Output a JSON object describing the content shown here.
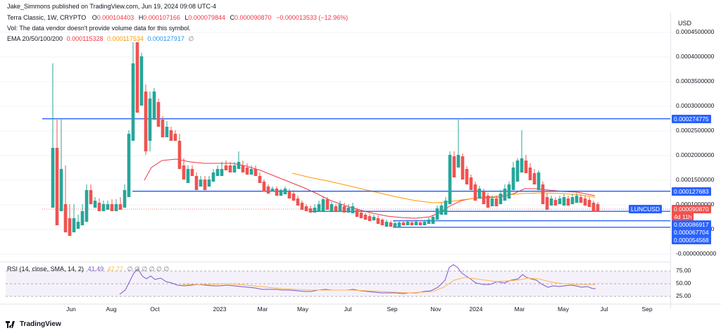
{
  "header": {
    "author": "Jake_Simmons published on TradingView.com, Jun 19, 2024 09:08 UTC-4",
    "symbol": "Terra Classic, 1W, CRYPTO",
    "ohlc": {
      "o_label": "O",
      "o": "0.000104403",
      "h_label": "H",
      "h": "0.000107166",
      "l_label": "L",
      "l": "0.000079844",
      "c_label": "C",
      "c": "0.000090870",
      "change": "−0.000013533 (−12.96%)"
    },
    "volume_note": "Vol: The data vendor doesn't provide volume data for this symbol.",
    "ema": {
      "label": "EMA 20/50/100/200",
      "v1": "0.000115328",
      "v2": "0.000117534",
      "v3": "0.000127917",
      "v4": "∅"
    }
  },
  "price_axis": {
    "currency": "USD",
    "ticks": [
      "0.0004500000",
      "0.0004000000",
      "0.0003500000",
      "0.0003000000",
      "0.0002500000",
      "0.0002000000",
      "0.0001500000",
      "0.0001000000",
      "0.0000500000",
      "-0.0000000000"
    ]
  },
  "badges": {
    "level1": "0.000274775",
    "level2": "0.000127683",
    "symbol": "LUNCUSD",
    "last_price": "0.000090870",
    "countdown": "4d 11h",
    "level3": "0.000086917",
    "level4": "0.000067704",
    "level5": "0.000054568"
  },
  "rsi": {
    "label": "RSI (14, close, SMA, 14, 2)",
    "value": "41.49",
    "sma_value": "47.77",
    "extra": "∅ ∅ ∅ ∅ ∅ ∅",
    "ticks": [
      "75.00",
      "50.00",
      "25.00"
    ]
  },
  "time_axis": {
    "labels": [
      "Jun",
      "Aug",
      "Oct",
      "2023",
      "Mar",
      "May",
      "Jul",
      "Sep",
      "Nov",
      "2024",
      "Mar",
      "May",
      "Jul",
      "Sep"
    ]
  },
  "branding": {
    "logo_text": "TradingView"
  },
  "colors": {
    "up": "#26a69a",
    "down": "#ef5350",
    "hline": "#2962ff",
    "ema_fast": "#f23645",
    "ema_slow": "#ff9800",
    "rsi": "#7e57c2",
    "rsi_band": "#ede7f6"
  },
  "chart_data": {
    "type": "candlestick",
    "series_unit": "USD",
    "x_range": [
      "2022-05",
      "2024-09"
    ],
    "ylim": [
      0,
      0.00046
    ],
    "horizontal_levels": [
      0.000274775,
      0.000127683,
      8.6917e-05,
      6.7704e-05,
      5.4568e-05
    ],
    "last_close": 9.087e-05,
    "rsi": {
      "last": 41.49,
      "sma": 47.77,
      "bands": [
        70,
        50,
        30
      ]
    }
  }
}
